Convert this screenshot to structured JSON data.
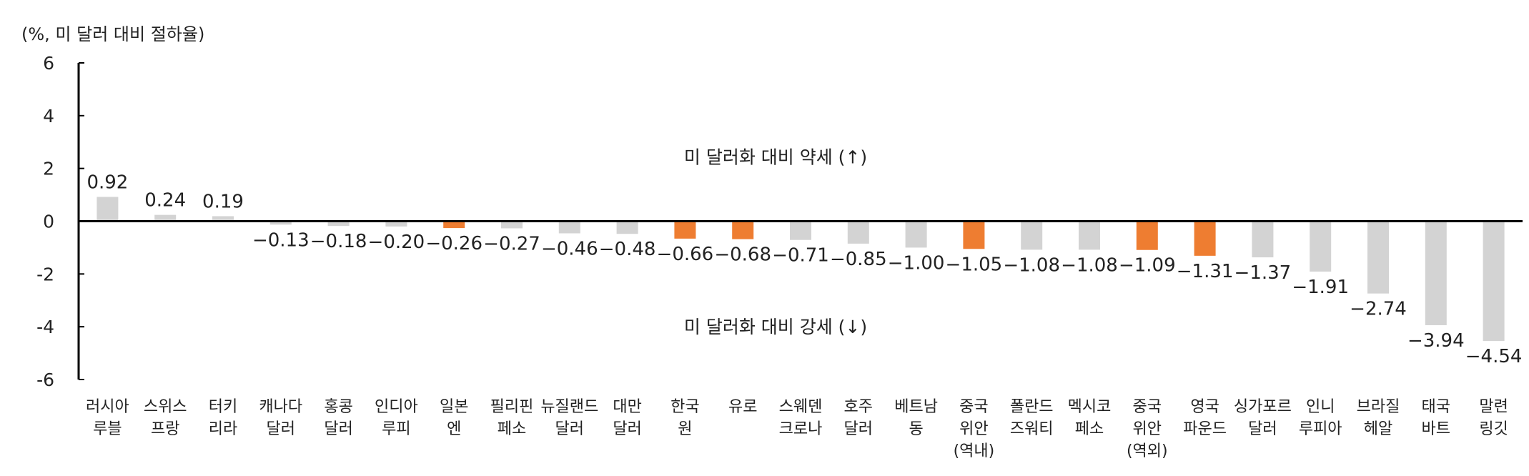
{
  "chart_data": {
    "type": "bar",
    "unit_label": "(%, 미 달러 대비 절하율)",
    "ylim": [
      -6,
      6
    ],
    "yticks": [
      6,
      4,
      2,
      0,
      -2,
      -4,
      -6
    ],
    "grid": false,
    "annotations": {
      "up": "미 달러화 대비 약세 (↑)",
      "down": "미 달러화 대비 강세 (↓)"
    },
    "categories": [
      [
        "러시아",
        "루블"
      ],
      [
        "스위스",
        "프랑"
      ],
      [
        "터키",
        "리라"
      ],
      [
        "캐나다",
        "달러"
      ],
      [
        "홍콩",
        "달러"
      ],
      [
        "인디아",
        "루피"
      ],
      [
        "일본",
        "엔"
      ],
      [
        "필리핀",
        "페소"
      ],
      [
        "뉴질랜드",
        "달러"
      ],
      [
        "대만",
        "달러"
      ],
      [
        "한국",
        "원"
      ],
      [
        "유로"
      ],
      [
        "스웨덴",
        "크로나"
      ],
      [
        "호주",
        "달러"
      ],
      [
        "베트남",
        "동"
      ],
      [
        "중국",
        "위안",
        "(역내)"
      ],
      [
        "폴란드",
        "즈워티"
      ],
      [
        "멕시코",
        "페소"
      ],
      [
        "중국",
        "위안",
        "(역외)"
      ],
      [
        "영국",
        "파운드"
      ],
      [
        "싱가포르",
        "달러"
      ],
      [
        "인니",
        "루피아"
      ],
      [
        "브라질",
        "헤알"
      ],
      [
        "태국",
        "바트"
      ],
      [
        "말련",
        "링깃"
      ]
    ],
    "values": [
      0.92,
      0.24,
      0.19,
      -0.13,
      -0.18,
      -0.2,
      -0.26,
      -0.27,
      -0.46,
      -0.48,
      -0.66,
      -0.68,
      -0.71,
      -0.85,
      -1.0,
      -1.05,
      -1.08,
      -1.08,
      -1.09,
      -1.31,
      -1.37,
      -1.91,
      -2.74,
      -3.94,
      -4.54
    ],
    "value_labels": [
      "0.92",
      "0.24",
      "0.19",
      "−0.13",
      "−0.18",
      "−0.20",
      "−0.26",
      "−0.27",
      "−0.46",
      "−0.48",
      "−0.66",
      "−0.68",
      "−0.71",
      "−0.85",
      "−1.00",
      "−1.05",
      "−1.08",
      "−1.08",
      "−1.09",
      "−1.31",
      "−1.37",
      "−1.91",
      "−2.74",
      "−3.94",
      "−4.54"
    ],
    "highlight": [
      false,
      false,
      false,
      false,
      false,
      false,
      true,
      false,
      false,
      false,
      true,
      true,
      false,
      false,
      false,
      true,
      false,
      false,
      true,
      true,
      false,
      false,
      false,
      false,
      false
    ],
    "colors": {
      "default": "#d3d3d3",
      "highlight": "#ee7d31",
      "axis": "#000000"
    }
  }
}
